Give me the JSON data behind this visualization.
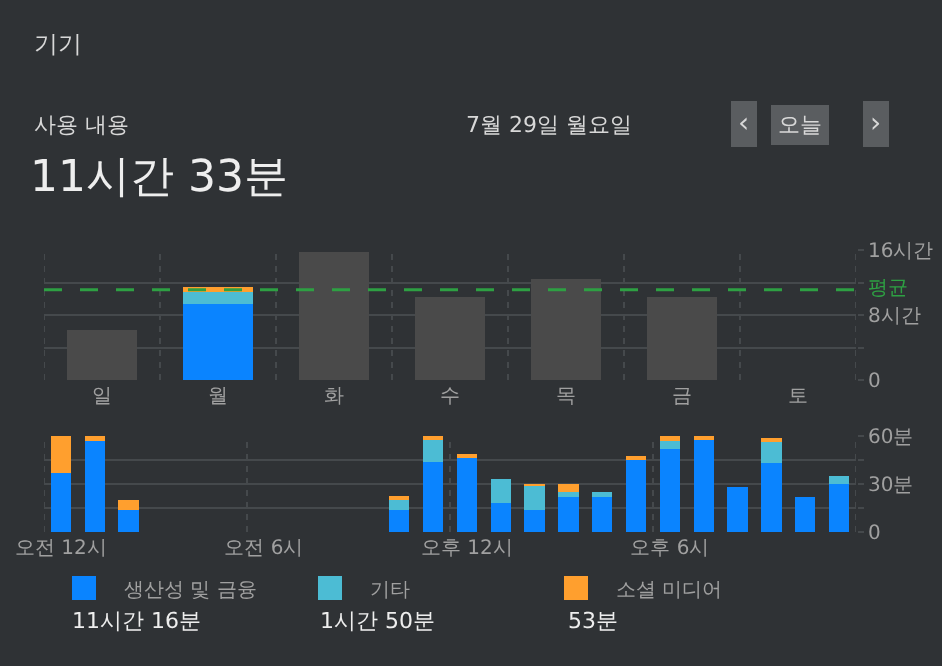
{
  "chart_data": [
    {
      "type": "bar",
      "title": "11시간 33분",
      "annotations": [
        "기기",
        "사용 내용",
        "7월 29일 월요일",
        "‹",
        "오늘",
        "›"
      ],
      "categories": [
        "일",
        "월",
        "화",
        "수",
        "목",
        "금",
        "토"
      ],
      "stacked": true,
      "series": [
        {
          "color": "#4a4a4a",
          "values": [
            6.2,
            null,
            15.8,
            10.2,
            12.4,
            10.2,
            null
          ]
        },
        {
          "color": "#0a84ff",
          "values": [
            null,
            9.3,
            null,
            null,
            null,
            null,
            null
          ]
        },
        {
          "color": "#4cbcd4",
          "values": [
            null,
            1.5,
            null,
            null,
            null,
            null,
            null
          ]
        },
        {
          "color": "#ff9f2e",
          "values": [
            null,
            0.7,
            null,
            null,
            null,
            null,
            null
          ]
        }
      ],
      "ylim": [
        0,
        16
      ],
      "yticks": [
        0,
        {
          "value": 4,
          "label": null
        },
        {
          "value": 8,
          "label": "8시간"
        },
        {
          "value": 12,
          "label": null
        },
        {
          "value": 16,
          "label": "16시간"
        }
      ],
      "grid": true,
      "ref_lines": [
        {
          "axis": "y",
          "value": 11.1,
          "label": "평균",
          "color": "#2ea043",
          "line_style": "dashed"
        }
      ]
    },
    {
      "type": "bar",
      "annotations": [
        "11시간 16분",
        "1시간 50분",
        "53분"
      ],
      "categories": [
        "오전 12시",
        null,
        null,
        null,
        null,
        null,
        "오전 6시",
        null,
        null,
        null,
        null,
        null,
        "오후 12시",
        null,
        null,
        null,
        null,
        null,
        "오후 6시",
        null,
        null,
        null,
        null,
        null
      ],
      "stacked": true,
      "series": [
        {
          "name": "생산성 및 금융",
          "color": "#0a84ff",
          "values": [
            37,
            57,
            14,
            null,
            null,
            null,
            null,
            null,
            null,
            null,
            14,
            44,
            47,
            18,
            14,
            22,
            22,
            45,
            52,
            58,
            28,
            43,
            22,
            30
          ]
        },
        {
          "name": "기타",
          "color": "#4cbcd4",
          "values": [
            null,
            null,
            null,
            null,
            null,
            null,
            null,
            null,
            null,
            null,
            6,
            14,
            null,
            15,
            15,
            3,
            3,
            null,
            5,
            null,
            null,
            14,
            null,
            5
          ]
        },
        {
          "name": "소셜 미디어",
          "color": "#ff9f2e",
          "values": [
            23,
            3,
            6,
            null,
            null,
            null,
            null,
            null,
            null,
            null,
            2,
            1,
            1,
            null,
            1,
            5,
            null,
            2,
            3,
            1,
            null,
            1,
            null,
            null
          ]
        }
      ],
      "ylim": [
        0,
        60
      ],
      "yticks": [
        0,
        {
          "value": 15,
          "label": null
        },
        {
          "value": 30,
          "label": "30분"
        },
        {
          "value": 45,
          "label": null
        },
        {
          "value": 60,
          "label": "60분"
        }
      ],
      "grid": true,
      "legend": "bottom"
    }
  ]
}
